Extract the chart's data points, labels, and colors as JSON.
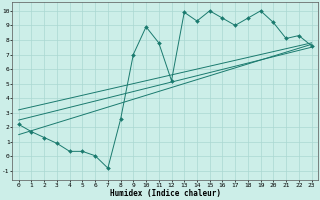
{
  "xlabel": "Humidex (Indice chaleur)",
  "bg_color": "#cceee8",
  "grid_color": "#aad8d2",
  "line_color": "#1a7a6e",
  "xlim": [
    -0.5,
    23.5
  ],
  "ylim": [
    -1.6,
    10.6
  ],
  "xticks": [
    0,
    1,
    2,
    3,
    4,
    5,
    6,
    7,
    8,
    9,
    10,
    11,
    12,
    13,
    14,
    15,
    16,
    17,
    18,
    19,
    20,
    21,
    22,
    23
  ],
  "yticks": [
    -1,
    0,
    1,
    2,
    3,
    4,
    5,
    6,
    7,
    8,
    9,
    10
  ],
  "main_x": [
    0,
    1,
    2,
    3,
    4,
    5,
    6,
    7,
    8,
    9,
    10,
    11,
    12,
    13,
    14,
    15,
    16,
    17,
    18,
    19,
    20,
    21,
    22,
    23
  ],
  "main_y": [
    2.2,
    1.7,
    1.3,
    0.9,
    0.35,
    0.35,
    0.05,
    -0.8,
    2.55,
    7.0,
    8.9,
    7.8,
    5.2,
    9.9,
    9.3,
    10.0,
    9.5,
    9.0,
    9.5,
    10.0,
    9.2,
    8.1,
    8.3,
    7.6
  ],
  "line1_x": [
    0,
    23
  ],
  "line1_y": [
    1.5,
    7.7
  ],
  "line2_x": [
    0,
    23
  ],
  "line2_y": [
    2.5,
    7.5
  ],
  "line3_x": [
    0,
    23
  ],
  "line3_y": [
    3.2,
    7.8
  ]
}
